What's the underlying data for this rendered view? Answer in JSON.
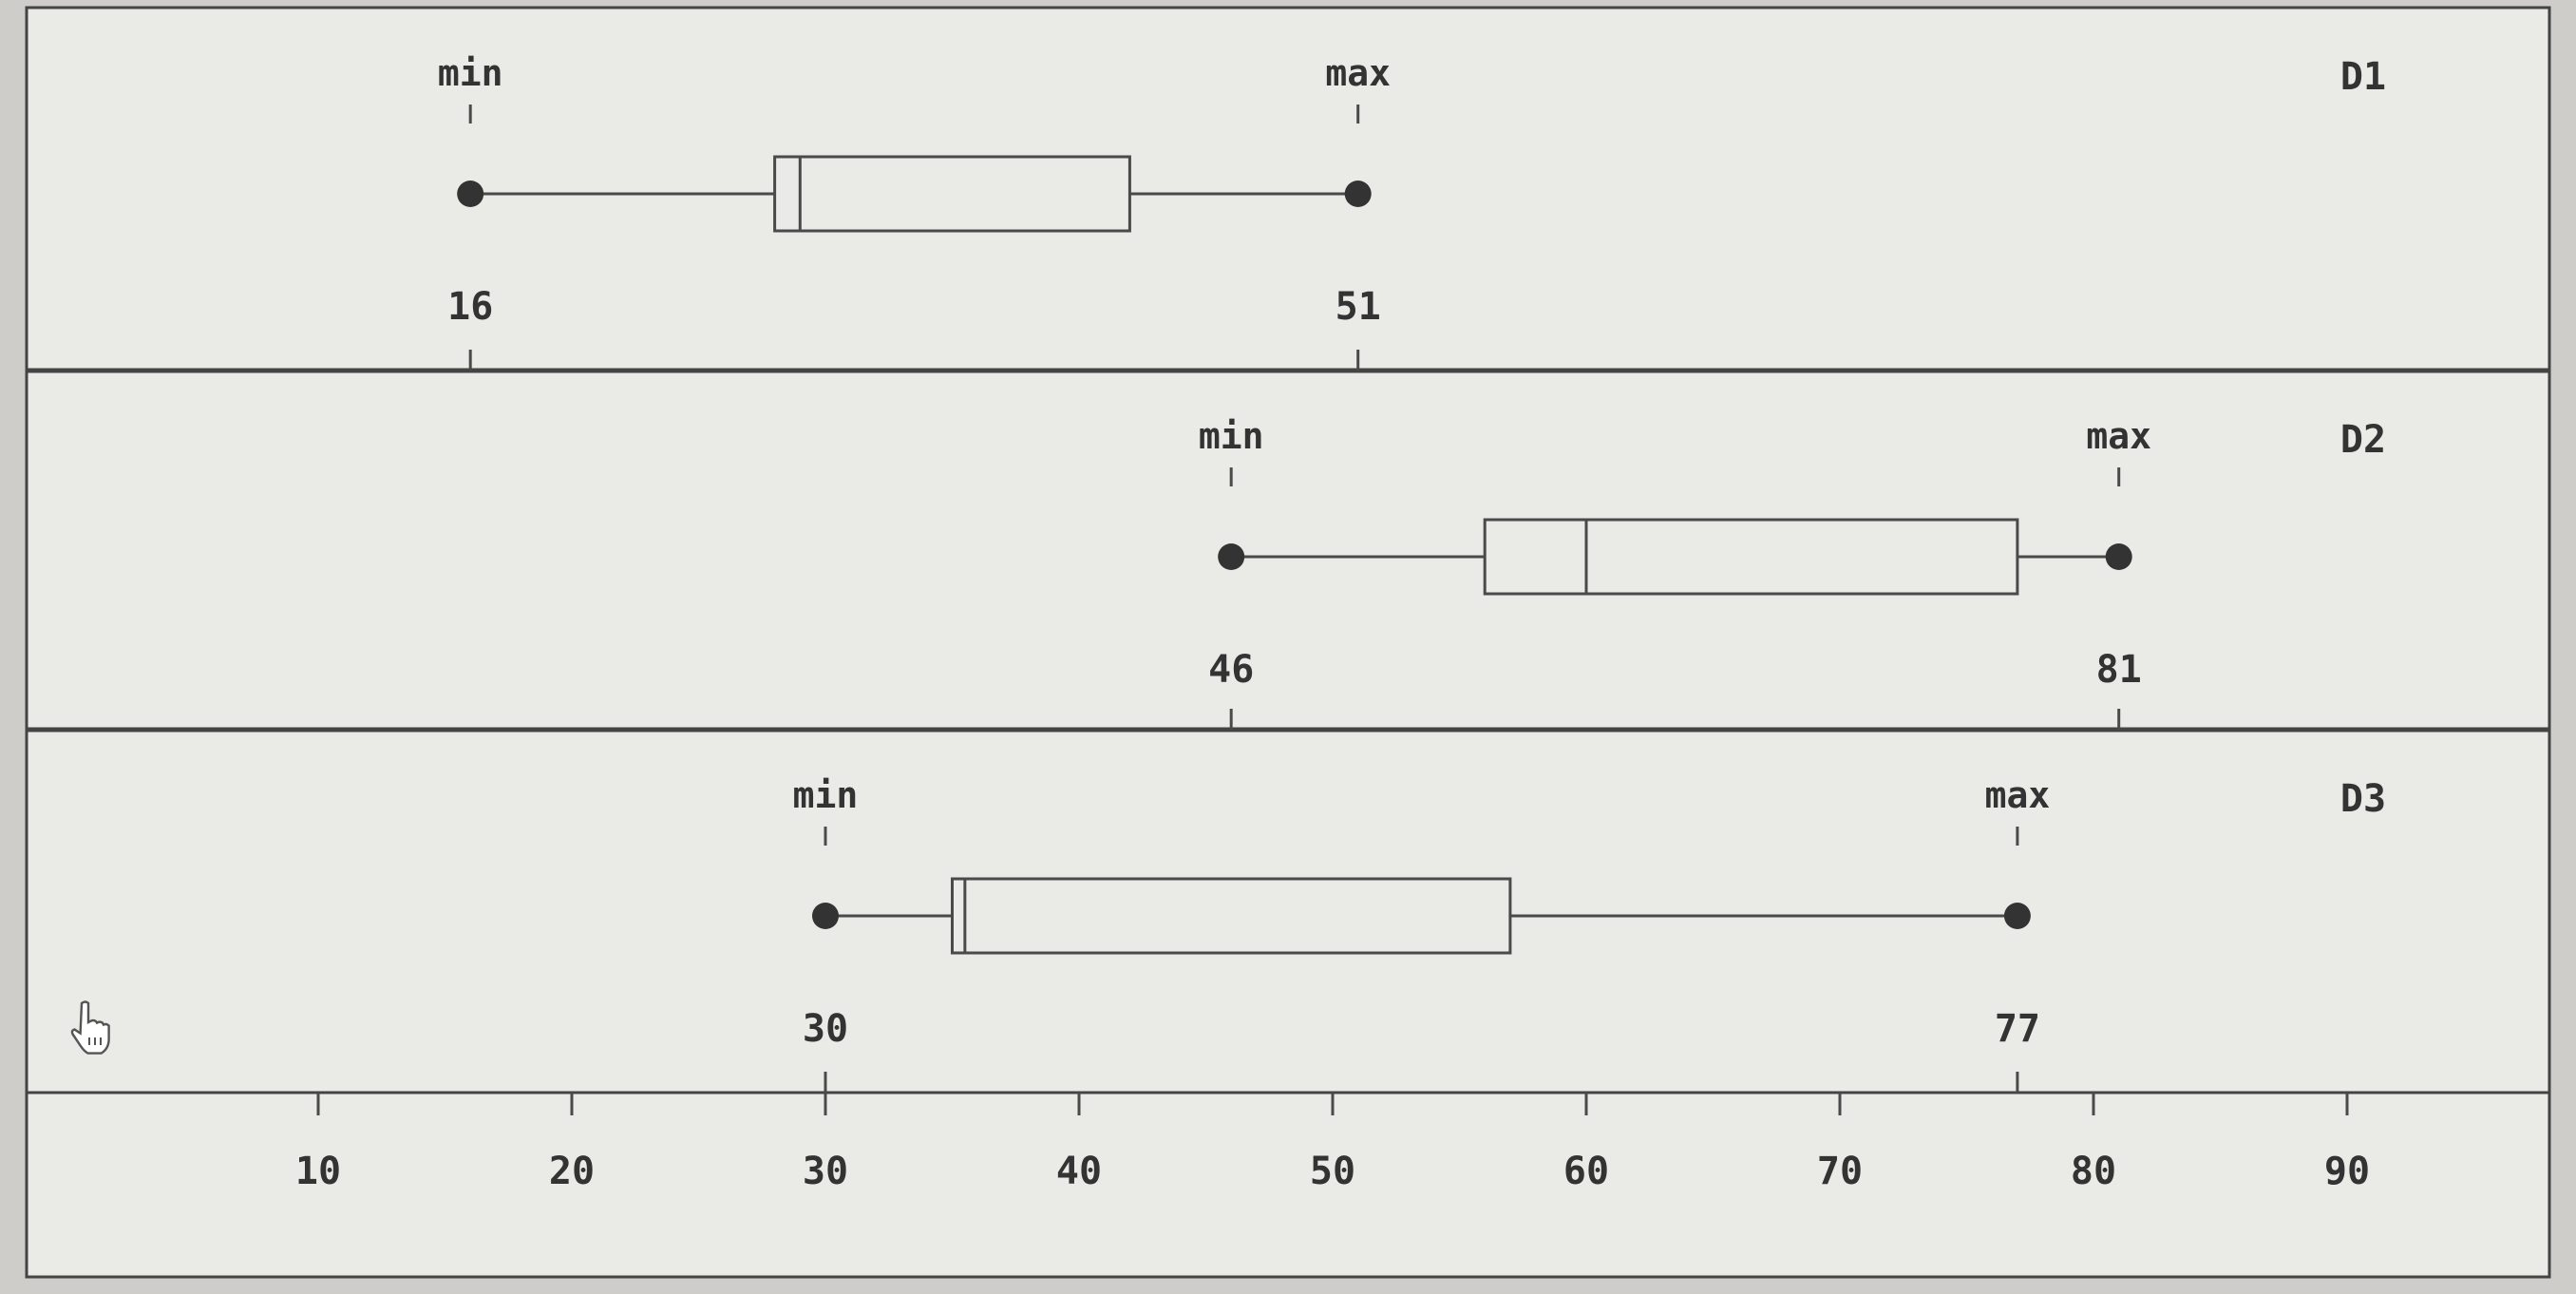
{
  "chart_data": {
    "type": "boxplot",
    "xlim": [
      0,
      97
    ],
    "x_ticks": [
      "10",
      "20",
      "30",
      "40",
      "50",
      "60",
      "70",
      "80",
      "90"
    ],
    "min_label": "min",
    "max_label": "max",
    "series": [
      {
        "name": "D1",
        "min": 16,
        "q1": 28,
        "median": 29,
        "q3": 42,
        "max": 51,
        "min_value_label": "16",
        "max_value_label": "51"
      },
      {
        "name": "D2",
        "min": 46,
        "q1": 56,
        "median": 60,
        "q3": 77,
        "max": 81,
        "min_value_label": "46",
        "max_value_label": "81"
      },
      {
        "name": "D3",
        "min": 30,
        "q1": 35,
        "median": 35.5,
        "q3": 57,
        "max": 77,
        "min_value_label": "30",
        "max_value_label": "77"
      }
    ]
  },
  "colors": {
    "background": "#eaeae6",
    "frame": "#444444",
    "stroke": "#4a4a4a",
    "text": "#333333"
  },
  "icons": {
    "cursor": "hand-pointer-icon"
  }
}
